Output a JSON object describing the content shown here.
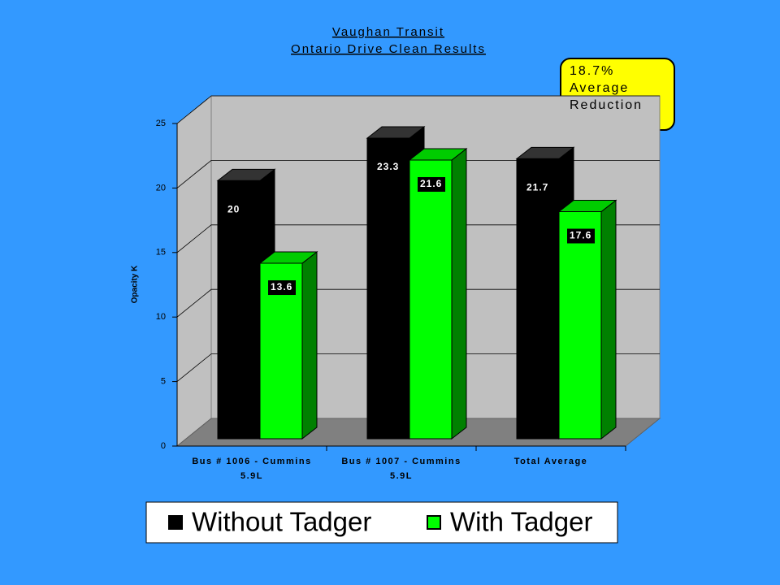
{
  "chart_data": {
    "type": "bar3d",
    "title": "Vaughan Transit",
    "subtitle": "Ontario Drive Clean Results",
    "y_label": "Opacity K",
    "categories": [
      "Bus # 1006 - Cummins 5.9L",
      "Bus # 1007 - Cummins 5.9L",
      "Total Average"
    ],
    "series": [
      {
        "name": "Without Tadger",
        "color": "#000000",
        "values": [
          20,
          23.3,
          21.7
        ]
      },
      {
        "name": "With Tadger",
        "color": "#00ff00",
        "values": [
          13.6,
          21.6,
          17.6
        ]
      }
    ],
    "ylim": [
      0,
      25
    ],
    "yticks": [
      0,
      5,
      10,
      15,
      20,
      25
    ],
    "grid": true,
    "annotation": [
      "18.7%",
      "Average",
      "Reduction"
    ]
  }
}
